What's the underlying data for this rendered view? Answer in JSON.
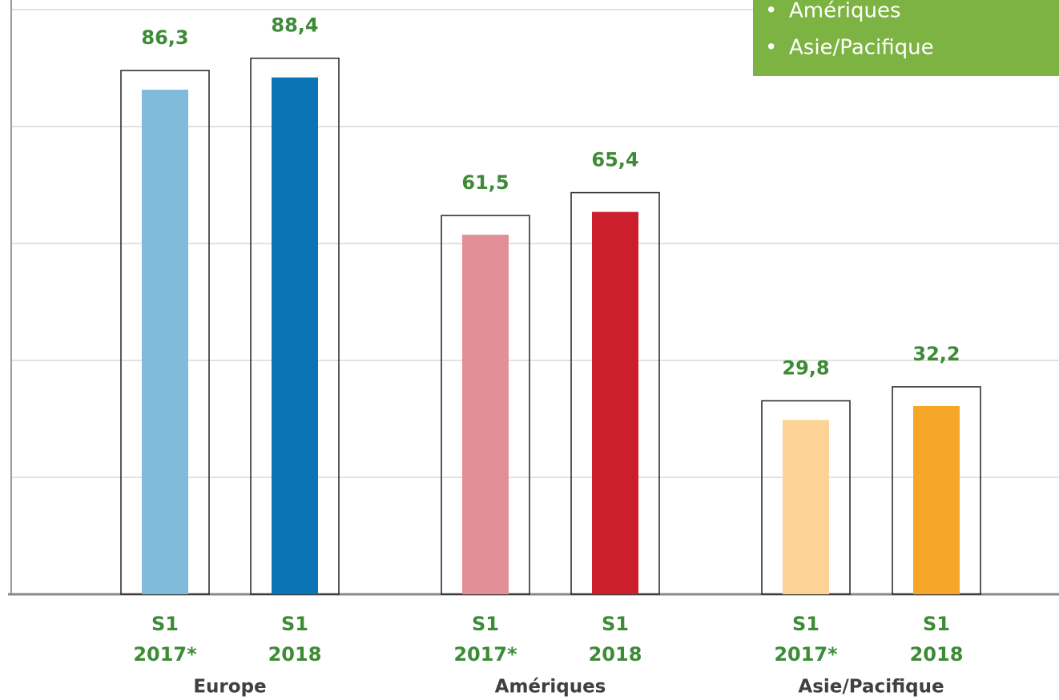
{
  "chart_data": {
    "type": "bar",
    "categories": [
      [
        "S1",
        "2017*"
      ],
      [
        "S1",
        "2018"
      ],
      [
        "S1",
        "2017*"
      ],
      [
        "S1",
        "2018"
      ],
      [
        "S1",
        "2017*"
      ],
      [
        "S1",
        "2018"
      ]
    ],
    "groups": [
      "Europe",
      "Amériques",
      "Asie/Pacifique"
    ],
    "values": [
      86.3,
      88.4,
      61.5,
      65.4,
      29.8,
      32.2
    ],
    "value_labels": [
      "86,3",
      "88,4",
      "61,5",
      "65,4",
      "29,8",
      "32,2"
    ],
    "colors": [
      "#80bbdc",
      "#0b74b5",
      "#e38f97",
      "#cc1f2e",
      "#fcd394",
      "#f6a727"
    ],
    "ylim": [
      0,
      100
    ],
    "yticks": [
      0,
      20,
      40,
      60,
      80,
      100
    ],
    "grid": true,
    "legend": {
      "position": "top-right",
      "items": [
        "Amériques",
        "Asie/Pacifique"
      ]
    }
  }
}
